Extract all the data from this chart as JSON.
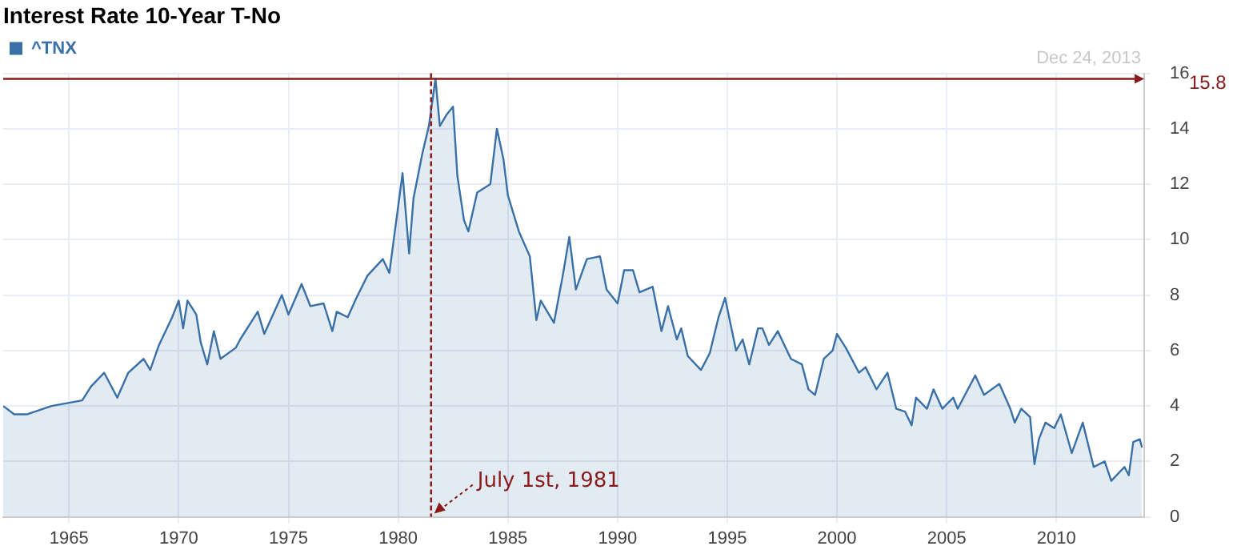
{
  "chart_data": {
    "type": "area",
    "title": "Interest Rate 10-Year T-No",
    "legend": "top left",
    "grid": true,
    "xlim": [
      1962,
      2014
    ],
    "xticks": [
      1965,
      1970,
      1975,
      1980,
      1985,
      1990,
      1995,
      2000,
      2005,
      2010
    ],
    "ylim": [
      0,
      16
    ],
    "yticks": [
      0,
      2,
      4,
      6,
      8,
      10,
      12,
      14,
      16
    ],
    "series": [
      {
        "name": "^TNX",
        "color": "#3a70a8",
        "x": [
          1962.0,
          1962.5,
          1963.1,
          1964.2,
          1965.6,
          1966.0,
          1966.6,
          1967.2,
          1967.7,
          1968.4,
          1968.7,
          1969.1,
          1969.7,
          1970.0,
          1970.2,
          1970.4,
          1970.8,
          1971.0,
          1971.3,
          1971.6,
          1971.9,
          1972.6,
          1972.8,
          1973.6,
          1973.9,
          1974.7,
          1975.0,
          1975.6,
          1976.0,
          1976.6,
          1977.0,
          1977.2,
          1977.7,
          1978.1,
          1978.6,
          1979.3,
          1979.6,
          1979.9,
          1980.2,
          1980.5,
          1980.7,
          1981.1,
          1981.4,
          1981.7,
          1981.9,
          1982.2,
          1982.5,
          1982.7,
          1983.0,
          1983.2,
          1983.6,
          1984.2,
          1984.5,
          1984.8,
          1985.0,
          1985.5,
          1986.0,
          1986.3,
          1986.5,
          1987.1,
          1987.5,
          1987.8,
          1988.1,
          1988.6,
          1989.2,
          1989.5,
          1990.0,
          1990.3,
          1990.7,
          1991.0,
          1991.6,
          1992.0,
          1992.3,
          1992.7,
          1992.9,
          1993.2,
          1993.8,
          1994.2,
          1994.6,
          1994.9,
          1995.4,
          1995.7,
          1996.0,
          1996.4,
          1996.6,
          1996.9,
          1997.3,
          1997.9,
          1998.4,
          1998.7,
          1999.0,
          1999.4,
          1999.8,
          2000.0,
          2000.4,
          2001.0,
          2001.3,
          2001.8,
          2002.3,
          2002.7,
          2003.1,
          2003.4,
          2003.6,
          2004.1,
          2004.4,
          2004.8,
          2005.3,
          2005.5,
          2006.3,
          2006.7,
          2007.4,
          2007.9,
          2008.1,
          2008.4,
          2008.8,
          2009.0,
          2009.2,
          2009.5,
          2009.9,
          2010.2,
          2010.7,
          2011.2,
          2011.7,
          2012.2,
          2012.5,
          2013.1,
          2013.3,
          2013.5,
          2013.8,
          2013.9
        ],
        "values": [
          4.0,
          3.7,
          3.7,
          4.0,
          4.2,
          4.7,
          5.2,
          4.3,
          5.2,
          5.7,
          5.3,
          6.2,
          7.2,
          7.8,
          6.8,
          7.8,
          7.3,
          6.3,
          5.5,
          6.7,
          5.7,
          6.1,
          6.4,
          7.4,
          6.6,
          8.0,
          7.3,
          8.4,
          7.6,
          7.7,
          6.7,
          7.4,
          7.2,
          7.9,
          8.7,
          9.3,
          8.8,
          10.6,
          12.4,
          9.5,
          11.5,
          13.1,
          14.1,
          15.8,
          14.1,
          14.5,
          14.8,
          12.3,
          10.7,
          10.3,
          11.7,
          12.0,
          14.0,
          12.9,
          11.6,
          10.3,
          9.4,
          7.1,
          7.8,
          7.0,
          8.7,
          10.1,
          8.2,
          9.3,
          9.4,
          8.2,
          7.7,
          8.9,
          8.9,
          8.1,
          8.3,
          6.7,
          7.6,
          6.4,
          6.8,
          5.8,
          5.3,
          5.9,
          7.2,
          7.9,
          6.0,
          6.4,
          5.5,
          6.8,
          6.8,
          6.2,
          6.7,
          5.7,
          5.5,
          4.6,
          4.4,
          5.7,
          6.0,
          6.6,
          6.1,
          5.2,
          5.4,
          4.6,
          5.2,
          3.9,
          3.8,
          3.3,
          4.3,
          3.9,
          4.6,
          3.9,
          4.3,
          3.9,
          5.1,
          4.4,
          4.8,
          3.9,
          3.4,
          3.9,
          3.6,
          1.9,
          2.8,
          3.4,
          3.2,
          3.7,
          2.3,
          3.4,
          1.8,
          2.0,
          1.3,
          1.8,
          1.5,
          2.7,
          2.8,
          2.5
        ]
      }
    ],
    "ref_lines": [
      {
        "axis": "y",
        "value": 15.8,
        "label": "15.8",
        "color": "#8b1a1a"
      },
      {
        "axis": "x",
        "value": 1981.5,
        "color": "#8b1a1a",
        "line_style": "dashed"
      }
    ],
    "annotations": [
      "Dec 24, 2013",
      {
        "text": "July 1st, 1981",
        "x": 1981.5,
        "y": 0
      }
    ]
  }
}
